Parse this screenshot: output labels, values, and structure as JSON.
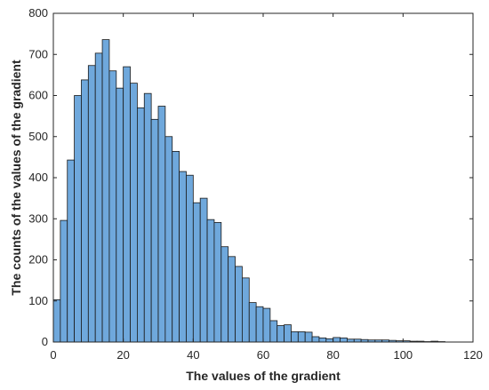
{
  "chart_data": {
    "type": "bar",
    "title": "",
    "xlabel": "The values of the gradient",
    "ylabel": "The counts of the values of the gradient",
    "xlim": [
      0,
      120
    ],
    "ylim": [
      0,
      800
    ],
    "xticks": [
      0,
      20,
      40,
      60,
      80,
      100,
      120
    ],
    "yticks": [
      0,
      100,
      200,
      300,
      400,
      500,
      600,
      700,
      800
    ],
    "grid": false,
    "legend": "none",
    "bin_width": 2,
    "bin_start": 0,
    "values": [
      103,
      296,
      443,
      600,
      638,
      673,
      703,
      736,
      660,
      618,
      670,
      630,
      570,
      605,
      542,
      574,
      500,
      464,
      415,
      406,
      339,
      350,
      298,
      291,
      232,
      208,
      184,
      156,
      96,
      86,
      82,
      52,
      40,
      42,
      25,
      25,
      24,
      13,
      10,
      8,
      11,
      10,
      7,
      7,
      6,
      5,
      5,
      5,
      4,
      3,
      3,
      2,
      2,
      1,
      2,
      1
    ],
    "bar_color": "#6fa8dc",
    "edge_color": "#1a1a1a"
  }
}
